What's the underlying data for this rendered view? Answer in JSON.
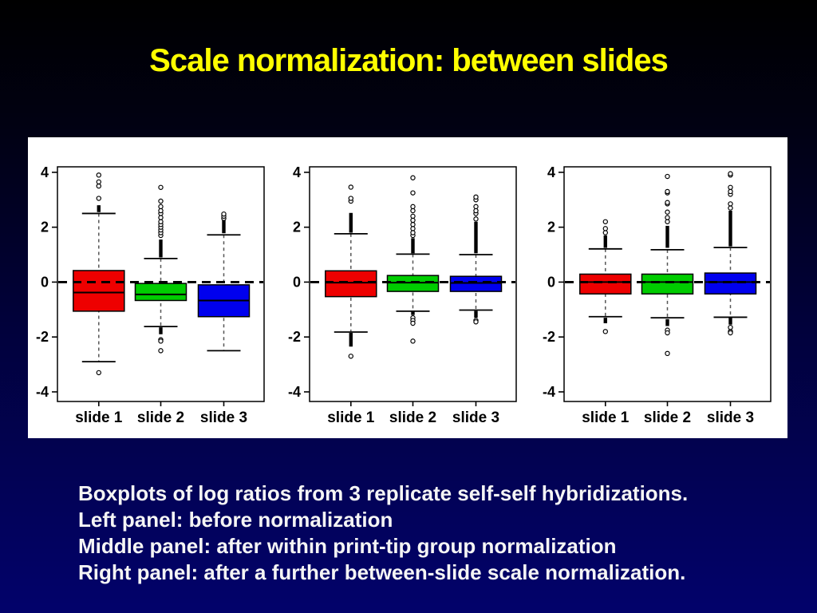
{
  "title": "Scale normalization: between slides",
  "caption": {
    "lines": [
      "Boxplots of log ratios from 3 replicate self-self hybridizations.",
      "Left panel: before normalization",
      "Middle panel: after within print-tip group normalization",
      "Right panel: after a further between-slide scale normalization."
    ]
  },
  "colors": {
    "background_top": "#000000",
    "background_bottom": "#02026b",
    "title_text": "#ffff00",
    "caption_text": "#f5f5f5",
    "figure_background": "#ffffff",
    "box_red": "#ee0000",
    "box_green": "#00cc00",
    "box_blue": "#0000ee",
    "axis_ink": "#000000"
  },
  "chart_data": {
    "type": "boxplot",
    "title": "",
    "xlabel": "",
    "ylabel": "",
    "ylim": [
      -4.35,
      4.2
    ],
    "yticks": [
      4,
      2,
      0,
      -2,
      -4
    ],
    "zero_reference_line": 0,
    "grid": false,
    "categories": [
      "slide 1",
      "slide 2",
      "slide 3"
    ],
    "panels": [
      {
        "position": "left",
        "boxes": [
          {
            "category": "slide 1",
            "color": "#ee0000",
            "q1": -1.06,
            "median": -0.38,
            "q3": 0.42,
            "whisker_low": -2.9,
            "whisker_high": 2.5,
            "dense_above": [
              2.55,
              2.8
            ],
            "points_above": [
              3.05,
              3.5,
              3.65,
              3.9
            ],
            "dense_below": null,
            "points_below": [
              -3.3
            ]
          },
          {
            "category": "slide 2",
            "color": "#00cc00",
            "q1": -0.67,
            "median": -0.45,
            "q3": -0.05,
            "whisker_low": -1.62,
            "whisker_high": 0.86,
            "dense_above": [
              0.9,
              1.55
            ],
            "points_above": [
              1.7,
              1.8,
              1.9,
              2.0,
              2.1,
              2.2,
              2.35,
              2.5,
              2.6,
              2.75,
              2.95,
              3.45
            ],
            "dense_below": [
              -1.9,
              -1.65
            ],
            "points_below": [
              -2.1,
              -2.15,
              -2.5
            ]
          },
          {
            "category": "slide 3",
            "color": "#0000ee",
            "q1": -1.26,
            "median": -0.67,
            "q3": -0.1,
            "whisker_low": -2.5,
            "whisker_high": 1.72,
            "dense_above": [
              1.78,
              2.28
            ],
            "points_above": [
              2.32,
              2.4,
              2.48
            ],
            "dense_below": null,
            "points_below": []
          }
        ]
      },
      {
        "position": "middle",
        "boxes": [
          {
            "category": "slide 1",
            "color": "#ee0000",
            "q1": -0.53,
            "median": -0.02,
            "q3": 0.41,
            "whisker_low": -1.82,
            "whisker_high": 1.76,
            "dense_above": [
              1.8,
              2.52
            ],
            "points_above": [
              2.95,
              3.05,
              3.46
            ],
            "dense_below": [
              -2.35,
              -1.85
            ],
            "points_below": [
              -2.7
            ]
          },
          {
            "category": "slide 2",
            "color": "#00cc00",
            "q1": -0.34,
            "median": -0.02,
            "q3": 0.24,
            "whisker_low": -1.06,
            "whisker_high": 1.02,
            "dense_above": [
              1.05,
              1.6
            ],
            "points_above": [
              1.7,
              1.8,
              1.95,
              2.1,
              2.25,
              2.4,
              2.6,
              2.75,
              3.25,
              3.8
            ],
            "dense_below": [
              -1.2,
              -1.08
            ],
            "points_below": [
              -1.3,
              -1.4,
              -1.5,
              -2.15
            ]
          },
          {
            "category": "slide 3",
            "color": "#0000ee",
            "q1": -0.34,
            "median": -0.03,
            "q3": 0.21,
            "whisker_low": -1.02,
            "whisker_high": 1.0,
            "dense_above": [
              1.05,
              2.2
            ],
            "points_above": [
              2.3,
              2.5,
              2.6,
              2.75,
              3.0,
              3.1
            ],
            "dense_below": [
              -1.3,
              -1.05
            ],
            "points_below": [
              -1.4,
              -1.45
            ]
          }
        ]
      },
      {
        "position": "right",
        "boxes": [
          {
            "category": "slide 1",
            "color": "#ee0000",
            "q1": -0.43,
            "median": 0.0,
            "q3": 0.29,
            "whisker_low": -1.26,
            "whisker_high": 1.21,
            "dense_above": [
              1.25,
              1.7
            ],
            "points_above": [
              1.8,
              1.95,
              2.2
            ],
            "dense_below": [
              -1.5,
              -1.3
            ],
            "points_below": [
              -1.8
            ]
          },
          {
            "category": "slide 2",
            "color": "#00cc00",
            "q1": -0.43,
            "median": 0.0,
            "q3": 0.29,
            "whisker_low": -1.3,
            "whisker_high": 1.18,
            "dense_above": [
              1.25,
              2.05
            ],
            "points_above": [
              2.2,
              2.35,
              2.55,
              2.85,
              2.9,
              3.25,
              3.3,
              3.85
            ],
            "dense_below": [
              -1.6,
              -1.35
            ],
            "points_below": [
              -1.75,
              -1.85,
              -2.6
            ]
          },
          {
            "category": "slide 3",
            "color": "#0000ee",
            "q1": -0.43,
            "median": 0.0,
            "q3": 0.33,
            "whisker_low": -1.28,
            "whisker_high": 1.26,
            "dense_above": [
              1.3,
              2.6
            ],
            "points_above": [
              2.7,
              2.85,
              3.2,
              3.3,
              3.45,
              3.9,
              3.95
            ],
            "dense_below": [
              -1.55,
              -1.3
            ],
            "points_below": [
              -1.65,
              -1.8,
              -1.85
            ]
          }
        ]
      }
    ]
  }
}
